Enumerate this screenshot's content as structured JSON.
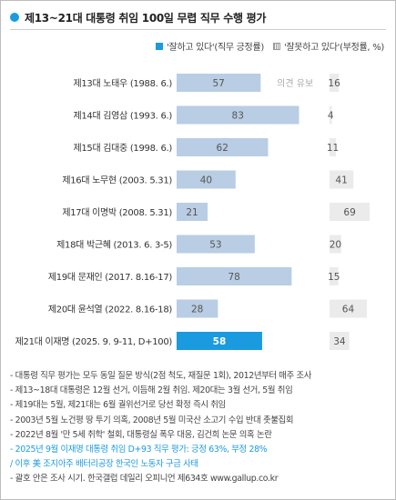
{
  "title": "제13~21대 대통령 취임 100일 무렵 직무 수행 평가",
  "legend": {
    "positive": "'잘하고 있다'(직무 긍정률)",
    "negative": "'잘못하고 있다'(부정률, %)"
  },
  "colors": {
    "accent": "#1a9be0",
    "positive_bar": "#b9cde4",
    "negative_bar": "#ebebeb"
  },
  "chart_data": {
    "type": "bar",
    "orientation": "horizontal",
    "stacked": false,
    "categories": [
      "제13대 노태우 (1988. 6.)",
      "제14대 김영삼 (1993. 6.)",
      "제15대 김대중 (1998. 6.)",
      "제16대 노무현 (2003. 5.31)",
      "제17대 이명박 (2008. 5.31)",
      "제18대 박근혜 (2013. 6. 3-5)",
      "제19대 문재인 (2017. 8.16-17)",
      "제20대 윤석열 (2022. 8.16-18)",
      "제21대 이재명 (2025. 9. 9-11, D+100)"
    ],
    "series": [
      {
        "name": "'잘하고 있다'(직무 긍정률)",
        "values": [
          57,
          83,
          62,
          40,
          21,
          53,
          78,
          28,
          58
        ]
      },
      {
        "name": "'잘못하고 있다'(부정률, %)",
        "values": [
          16,
          4,
          11,
          41,
          69,
          20,
          15,
          64,
          34
        ]
      }
    ],
    "annotations": [
      {
        "category": "제13대 노태우 (1988. 6.)",
        "text": "의견 유보"
      }
    ],
    "highlight_category": "제21대 이재명 (2025. 9. 9-11, D+100)",
    "xlim": [
      0,
      100
    ]
  },
  "notes": [
    {
      "text": "- 대통령 직무 평가는 모두 동일 질문 방식(2점 척도, 재질문 1회), 2012년부터 매주 조사",
      "highlight": false
    },
    {
      "text": "- 제13~18대 대통령은 12월 선거, 이듬해 2월 취임. 제20대는 3월 선거, 5월 취임",
      "highlight": false
    },
    {
      "text": "- 제19대는 5월, 제21대는 6월 궐위선거로 당선 확정 즉시 취임",
      "highlight": false
    },
    {
      "text": "- 2003년 5월 노건평 땅 투기 의혹, 2008년 5월 미국산 소고기 수입 반대 촛불집회",
      "highlight": false
    },
    {
      "text": "- 2022년 8월 '만 5세 취학' 철회, 대통령실 폭우 대응, 김건희 논문 의혹 논란",
      "highlight": false
    },
    {
      "text": "- 2025년 9월 이재명 대통령 취임 D+93 직무 평가: 긍정 63%, 부정 28%",
      "highlight": true
    },
    {
      "text": "/ 이후 美 조지아주 배터리공장 한국인 노동자 구금 사태",
      "highlight": true
    },
    {
      "text": "- 괄호 안은 조사 시기. 한국갤럽 데일리 오피니언 제634호 www.gallup.co.kr",
      "highlight": false
    }
  ]
}
